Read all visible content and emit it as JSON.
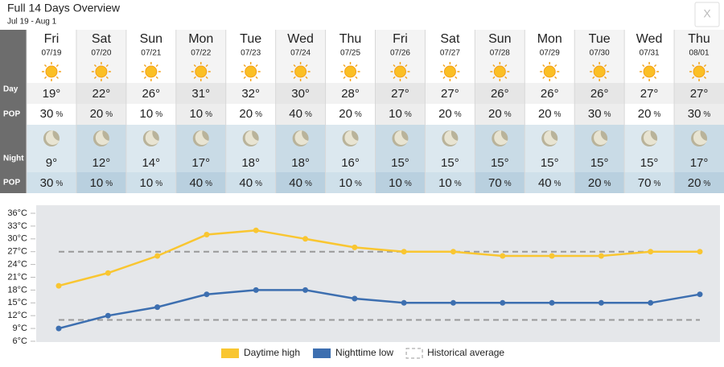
{
  "header": {
    "title": "Full 14 Days Overview",
    "subtitle": "Jul 19 - Aug 1",
    "close": "X"
  },
  "labels": {
    "day": "Day",
    "pop": "POP",
    "night": "Night"
  },
  "pop_unit": "%",
  "days": [
    {
      "name": "Fri",
      "date": "07/19",
      "day_temp": "19°",
      "day_pop": 30,
      "night_temp": "9°",
      "night_pop": 30
    },
    {
      "name": "Sat",
      "date": "07/20",
      "day_temp": "22°",
      "day_pop": 20,
      "night_temp": "12°",
      "night_pop": 10
    },
    {
      "name": "Sun",
      "date": "07/21",
      "day_temp": "26°",
      "day_pop": 10,
      "night_temp": "14°",
      "night_pop": 10
    },
    {
      "name": "Mon",
      "date": "07/22",
      "day_temp": "31°",
      "day_pop": 10,
      "night_temp": "17°",
      "night_pop": 40
    },
    {
      "name": "Tue",
      "date": "07/23",
      "day_temp": "32°",
      "day_pop": 20,
      "night_temp": "18°",
      "night_pop": 40
    },
    {
      "name": "Wed",
      "date": "07/24",
      "day_temp": "30°",
      "day_pop": 40,
      "night_temp": "18°",
      "night_pop": 40
    },
    {
      "name": "Thu",
      "date": "07/25",
      "day_temp": "28°",
      "day_pop": 20,
      "night_temp": "16°",
      "night_pop": 10
    },
    {
      "name": "Fri",
      "date": "07/26",
      "day_temp": "27°",
      "day_pop": 10,
      "night_temp": "15°",
      "night_pop": 10
    },
    {
      "name": "Sat",
      "date": "07/27",
      "day_temp": "27°",
      "day_pop": 20,
      "night_temp": "15°",
      "night_pop": 10
    },
    {
      "name": "Sun",
      "date": "07/28",
      "day_temp": "26°",
      "day_pop": 20,
      "night_temp": "15°",
      "night_pop": 70
    },
    {
      "name": "Mon",
      "date": "07/29",
      "day_temp": "26°",
      "day_pop": 20,
      "night_temp": "15°",
      "night_pop": 40
    },
    {
      "name": "Tue",
      "date": "07/30",
      "day_temp": "26°",
      "day_pop": 30,
      "night_temp": "15°",
      "night_pop": 20
    },
    {
      "name": "Wed",
      "date": "07/31",
      "day_temp": "27°",
      "day_pop": 20,
      "night_temp": "15°",
      "night_pop": 70
    },
    {
      "name": "Thu",
      "date": "08/01",
      "day_temp": "27°",
      "day_pop": 30,
      "night_temp": "17°",
      "night_pop": 20
    }
  ],
  "chart_data": {
    "type": "line",
    "series": [
      {
        "name": "Daytime high",
        "color": "#f9c631",
        "values": [
          19,
          22,
          26,
          31,
          32,
          30,
          28,
          27,
          27,
          26,
          26,
          26,
          27,
          27
        ]
      },
      {
        "name": "Nighttime low",
        "color": "#3d6fb0",
        "values": [
          9,
          12,
          14,
          17,
          18,
          18,
          16,
          15,
          15,
          15,
          15,
          15,
          15,
          17
        ]
      }
    ],
    "historical_average": {
      "name": "Historical average",
      "color": "#999999",
      "values": [
        27,
        11
      ]
    },
    "ylim": [
      6,
      36
    ],
    "yticks": [
      {
        "value": 6,
        "label": "6°C"
      },
      {
        "value": 9,
        "label": "9°C"
      },
      {
        "value": 12,
        "label": "12°C"
      },
      {
        "value": 15,
        "label": "15°C"
      },
      {
        "value": 18,
        "label": "18°C"
      },
      {
        "value": 21,
        "label": "21°C"
      },
      {
        "value": 24,
        "label": "24°C"
      },
      {
        "value": 27,
        "label": "27°C"
      },
      {
        "value": 30,
        "label": "30°C"
      },
      {
        "value": 33,
        "label": "33°C"
      },
      {
        "value": 36,
        "label": "36°C"
      }
    ]
  }
}
